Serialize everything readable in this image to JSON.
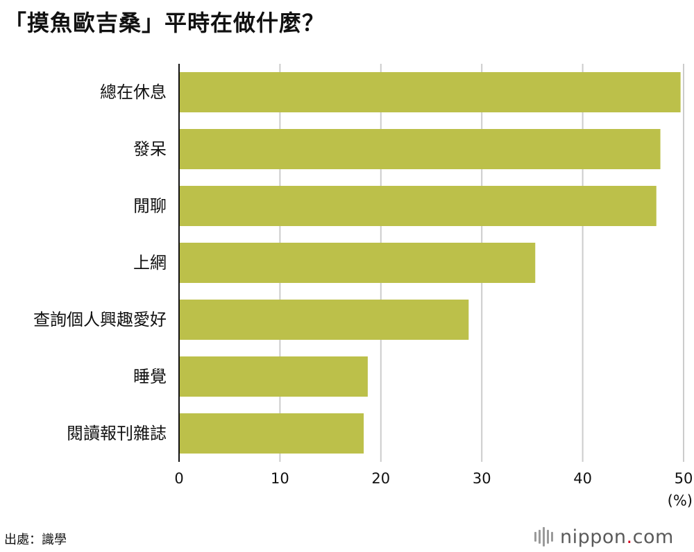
{
  "title": "「摸魚歐吉桑」平時在做什麼？",
  "source": "出處：識學",
  "logo": {
    "name": "nippon",
    "dot": ".",
    "suffix": "com",
    "accent": "#d6001c"
  },
  "chart_data": {
    "type": "bar",
    "orientation": "horizontal",
    "categories": [
      "總在休息",
      "發呆",
      "閒聊",
      "上網",
      "查詢個人興趣愛好",
      "睡覺",
      "閱讀報刊雜誌"
    ],
    "values": [
      49.7,
      47.7,
      47.3,
      35.3,
      28.7,
      18.7,
      18.3
    ],
    "xticks": [
      0,
      10,
      20,
      30,
      40,
      50
    ],
    "xlim": [
      0,
      50
    ],
    "unit": "(%)",
    "grid": true,
    "bar_color": "#bcc04a",
    "grid_color": "#cccccc"
  }
}
